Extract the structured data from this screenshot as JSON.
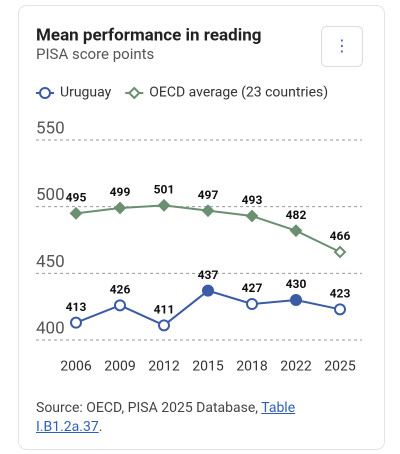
{
  "chart_data": {
    "type": "line",
    "title": "Mean performance in reading",
    "subtitle": "PISA score points",
    "menu": "⋮",
    "categories": [
      "2006",
      "2009",
      "2012",
      "2015",
      "2018",
      "2022",
      "2025"
    ],
    "series": [
      {
        "name": "Uruguay",
        "color": "#3b5ba5",
        "marker": "circle",
        "values": [
          413,
          426,
          411,
          437,
          427,
          430,
          423
        ],
        "filled": [
          false,
          false,
          false,
          true,
          false,
          true,
          false
        ]
      },
      {
        "name": "OECD average (23 countries)",
        "color": "#6b8f71",
        "marker": "diamond",
        "values": [
          495,
          499,
          501,
          497,
          493,
          482,
          466
        ],
        "filled": [
          true,
          true,
          true,
          true,
          true,
          true,
          false
        ]
      }
    ],
    "ylim": [
      400,
      550
    ],
    "yticks": [
      400,
      450,
      500,
      550
    ],
    "grid": true
  },
  "source": {
    "text": "Source: OECD, PISA 2025 Database, ",
    "link": "Table I.B1.2a.37",
    "end": "."
  }
}
